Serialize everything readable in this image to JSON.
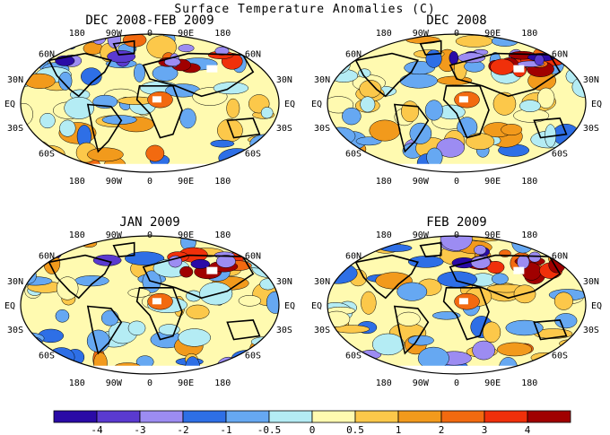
{
  "main_title": "Surface Temperature Anomalies (C)",
  "lon_labels": [
    "180",
    "90W",
    "0",
    "90E",
    "180"
  ],
  "lat_labels": [
    "60N",
    "30N",
    "EQ",
    "30S",
    "60S"
  ],
  "panels": [
    {
      "title": "DEC 2008-FEB 2009",
      "warm_north": 0.3,
      "cold_north": 0.6
    },
    {
      "title": "DEC 2008",
      "warm_north": 0.8,
      "cold_north": 0.8
    },
    {
      "title": "JAN 2009",
      "warm_north": 0.4,
      "cold_north": 0.5
    },
    {
      "title": "FEB 2009",
      "warm_north": 0.6,
      "cold_north": 0.9
    }
  ],
  "colorbar": {
    "tick_labels": [
      "-4",
      "-3",
      "-2",
      "-1",
      "-0.5",
      "0",
      "0.5",
      "1",
      "2",
      "3",
      "4"
    ],
    "colors": [
      "#2a0aa6",
      "#5a3ad0",
      "#9c8cf2",
      "#2e6fe6",
      "#66a8f2",
      "#b4ecf4",
      "#fffab0",
      "#fcc84a",
      "#f29a1c",
      "#f26a10",
      "#f0300a",
      "#a00000"
    ]
  },
  "palette": {
    "land_outline": "#000000",
    "ocean_base": "#fffab0",
    "missing": "#ffffff"
  }
}
